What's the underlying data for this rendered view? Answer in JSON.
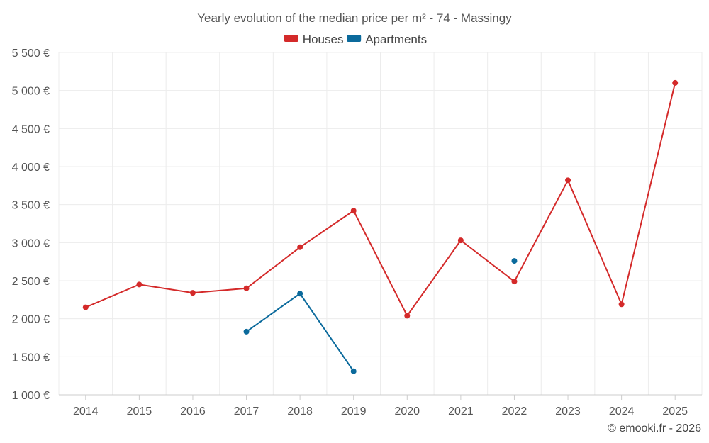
{
  "chart_data": {
    "type": "line",
    "title": "Yearly evolution of the median price per m² - 74 - Massingy",
    "categories": [
      "2014",
      "2015",
      "2016",
      "2017",
      "2018",
      "2019",
      "2020",
      "2021",
      "2022",
      "2023",
      "2024",
      "2025"
    ],
    "series": [
      {
        "name": "Houses",
        "color": "#d42a2a",
        "values": [
          2150,
          2450,
          2340,
          2400,
          2940,
          3420,
          2040,
          3030,
          2490,
          3820,
          2190,
          5100
        ]
      },
      {
        "name": "Apartments",
        "color": "#0b6a9c",
        "values": [
          null,
          null,
          null,
          1830,
          2330,
          1310,
          null,
          null,
          2760,
          null,
          null,
          null
        ]
      }
    ],
    "ylim": [
      1000,
      5500
    ],
    "yticks": [
      {
        "value": 1000,
        "label": "1 000 €"
      },
      {
        "value": 1500,
        "label": "1 500 €"
      },
      {
        "value": 2000,
        "label": "2 000 €"
      },
      {
        "value": 2500,
        "label": "2 500 €"
      },
      {
        "value": 3000,
        "label": "3 000 €"
      },
      {
        "value": 3500,
        "label": "3 500 €"
      },
      {
        "value": 4000,
        "label": "4 000 €"
      },
      {
        "value": 4500,
        "label": "4 500 €"
      },
      {
        "value": 5000,
        "label": "5 000 €"
      },
      {
        "value": 5500,
        "label": "5 500 €"
      }
    ],
    "xlabel": "",
    "ylabel": "",
    "grid": true,
    "legend_position": "top-center"
  },
  "credit": "© emooki.fr - 2026"
}
